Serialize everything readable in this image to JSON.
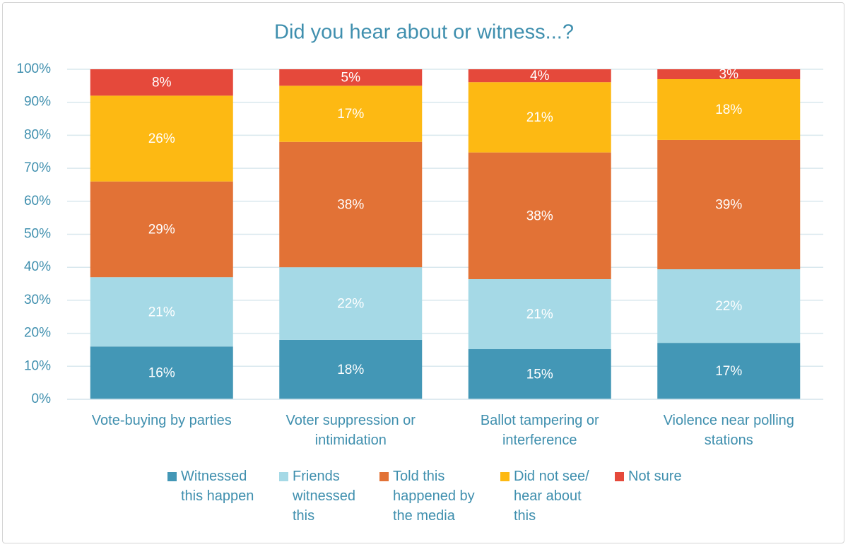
{
  "chart_data": {
    "type": "stacked_bar",
    "title": "Did you hear about or witness...?",
    "categories": [
      "Vote-buying by parties",
      "Voter suppression or intimidation",
      "Ballot tampering or interference",
      "Violence near polling stations"
    ],
    "series": [
      {
        "name": "Witnessed this happen",
        "color": "#4397b6",
        "values": [
          16,
          18,
          15.2,
          17.1
        ],
        "value_labels": [
          "16%",
          "18%",
          "15%",
          "17%"
        ]
      },
      {
        "name": "Friends witnessed this",
        "color": "#a5d9e6",
        "values": [
          21,
          22,
          21.2,
          22.3
        ],
        "value_labels": [
          "21%",
          "22%",
          "21%",
          "22%"
        ]
      },
      {
        "name": "Told this happened by the media",
        "color": "#e27236",
        "values": [
          29,
          38,
          38.4,
          39.2
        ],
        "value_labels": [
          "29%",
          "38%",
          "38%",
          "39%"
        ]
      },
      {
        "name": "Did not see/ hear about this",
        "color": "#fdb913",
        "values": [
          26,
          17,
          21.3,
          18.4
        ],
        "value_labels": [
          "26%",
          "17%",
          "21%",
          "18%"
        ]
      },
      {
        "name": "Not sure",
        "color": "#e5493b",
        "values": [
          8,
          5,
          3.9,
          3.0
        ],
        "value_labels": [
          "8%",
          "5%",
          "4%",
          "3%"
        ]
      }
    ],
    "ylim": [
      0,
      100
    ],
    "yticks": [
      {
        "value": 0,
        "label": "0%"
      },
      {
        "value": 10,
        "label": "10%"
      },
      {
        "value": 20,
        "label": "20%"
      },
      {
        "value": 30,
        "label": "30%"
      },
      {
        "value": 40,
        "label": "40%"
      },
      {
        "value": 50,
        "label": "50%"
      },
      {
        "value": 60,
        "label": "60%"
      },
      {
        "value": 70,
        "label": "70%"
      },
      {
        "value": 80,
        "label": "80%"
      },
      {
        "value": 90,
        "label": "90%"
      },
      {
        "value": 100,
        "label": "100%"
      }
    ],
    "grid": true,
    "legend": "bottom"
  }
}
